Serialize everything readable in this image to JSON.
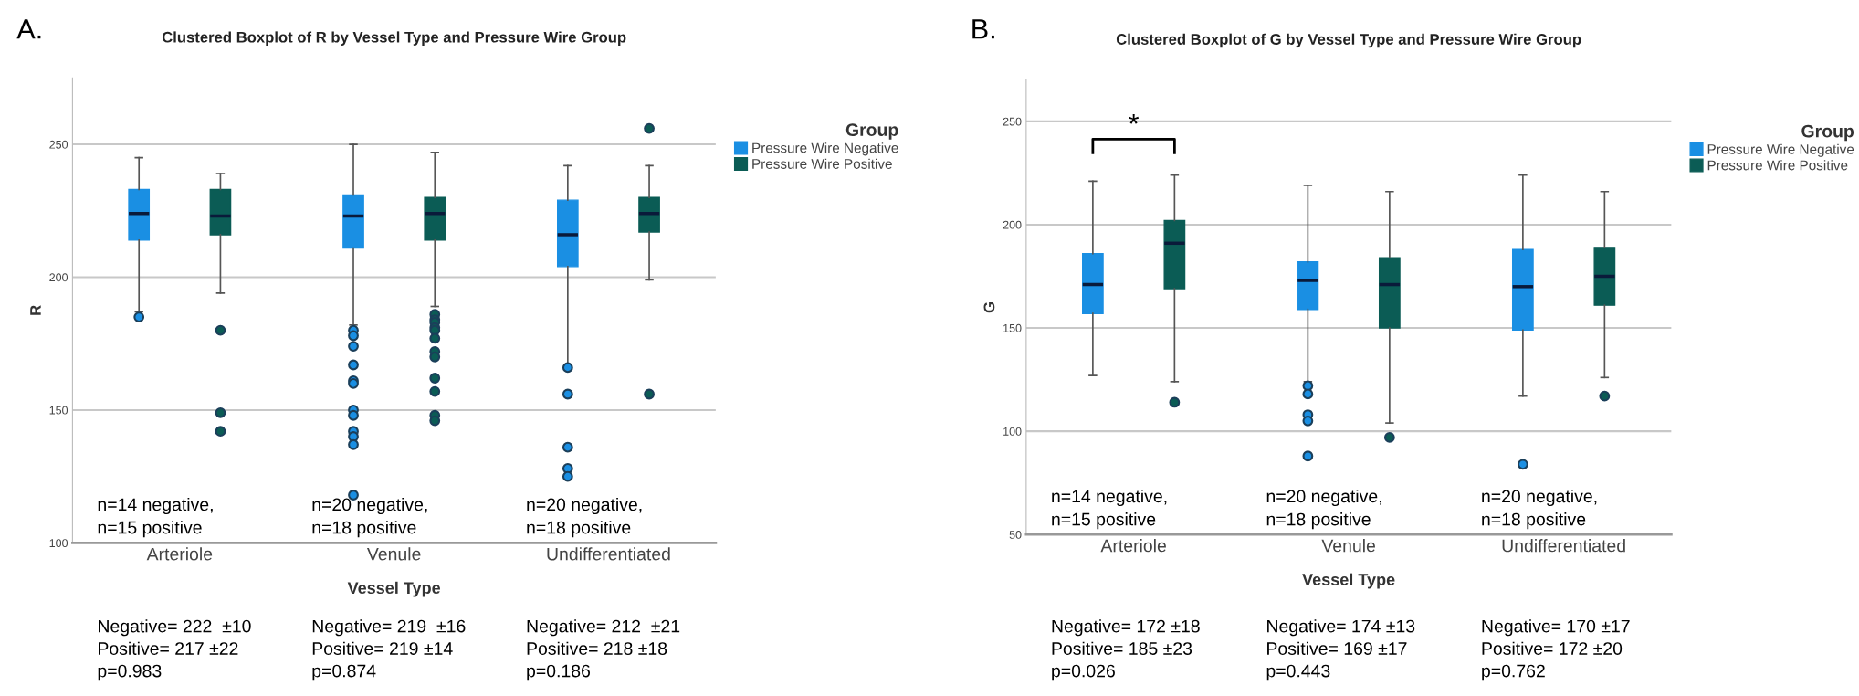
{
  "chart_data": [
    {
      "type": "box",
      "title": "Clustered Boxplot of R by Vessel Type and Pressure Wire Group",
      "xlabel": "Vessel Type",
      "ylabel": "R",
      "legend_title": "Group",
      "categories": [
        "Arteriole",
        "Venule",
        "Undifferentiated"
      ],
      "ylim": [
        100,
        275
      ],
      "yticks": [
        100,
        150,
        200,
        250
      ],
      "grid": "y",
      "legend": "right",
      "series": [
        {
          "name": "Pressure Wire Negative",
          "color": "#1a8fe3",
          "boxes": [
            {
              "low": 187,
              "q1": 214,
              "median": 224,
              "q3": 233,
              "high": 245,
              "outliers": [
                185
              ]
            },
            {
              "low": 182,
              "q1": 211,
              "median": 223,
              "q3": 231,
              "high": 250,
              "outliers": [
                180,
                178,
                174,
                167,
                161,
                160,
                150,
                148,
                142,
                140,
                137,
                118
              ]
            },
            {
              "low": 167,
              "q1": 204,
              "median": 216,
              "q3": 229,
              "high": 242,
              "outliers": [
                166,
                156,
                136,
                128,
                125
              ]
            }
          ]
        },
        {
          "name": "Pressure Wire Positive",
          "color": "#0b5c55",
          "boxes": [
            {
              "low": 194,
              "q1": 216,
              "median": 223,
              "q3": 233,
              "high": 239,
              "outliers": [
                180,
                149,
                142
              ]
            },
            {
              "low": 189,
              "q1": 214,
              "median": 224,
              "q3": 230,
              "high": 247,
              "outliers": [
                186,
                184,
                183,
                181,
                180,
                177,
                172,
                170,
                162,
                157,
                148,
                146
              ]
            },
            {
              "low": 199,
              "q1": 217,
              "median": 224,
              "q3": 230,
              "high": 242,
              "outliers": [
                256,
                156
              ]
            }
          ]
        }
      ],
      "annotations": [
        "A.",
        "n=14 negative,\nn=15 positive",
        "n=20 negative,\nn=18 positive",
        "n=20 negative,\nn=18 positive",
        "Negative= 222  ±10\nPositive= 217 ±22\np=0.983",
        "Negative= 219  ±16\nPositive= 219 ±14\np=0.874",
        "Negative= 212  ±21\nPositive= 218 ±18\np=0.186"
      ]
    },
    {
      "type": "box",
      "title": "Clustered Boxplot of G by Vessel Type and Pressure Wire Group",
      "xlabel": "Vessel Type",
      "ylabel": "G",
      "legend_title": "Group",
      "categories": [
        "Arteriole",
        "Venule",
        "Undifferentiated"
      ],
      "ylim": [
        50,
        270
      ],
      "yticks": [
        50,
        100,
        150,
        200,
        250
      ],
      "grid": "y",
      "legend": "right",
      "series": [
        {
          "name": "Pressure Wire Negative",
          "color": "#1a8fe3",
          "boxes": [
            {
              "low": 127,
              "q1": 157,
              "median": 171,
              "q3": 186,
              "high": 221
            },
            {
              "low": 124,
              "q1": 159,
              "median": 173,
              "q3": 182,
              "high": 219,
              "outliers": [
                122,
                118,
                108,
                105,
                88
              ]
            },
            {
              "low": 117,
              "q1": 149,
              "median": 170,
              "q3": 188,
              "high": 224,
              "outliers": [
                84
              ]
            }
          ]
        },
        {
          "name": "Pressure Wire Positive",
          "color": "#0b5c55",
          "boxes": [
            {
              "low": 124,
              "q1": 169,
              "median": 191,
              "q3": 202,
              "high": 224,
              "outliers": [
                114
              ]
            },
            {
              "low": 104,
              "q1": 150,
              "median": 171,
              "q3": 184,
              "high": 216,
              "outliers": [
                97
              ]
            },
            {
              "low": 126,
              "q1": 161,
              "median": 175,
              "q3": 189,
              "high": 216,
              "outliers": [
                117
              ]
            }
          ]
        }
      ],
      "annotations": [
        "B.",
        "n=14 negative,\nn=15 positive",
        "n=20 negative,\nn=18 positive",
        "n=20 negative,\nn=18 positive",
        "Negative= 172 ±18\nPositive= 185 ±23\np=0.026",
        "Negative= 174 ±13\nPositive= 169 ±17\np=0.443",
        "Negative= 170 ±17\nPositive= 172 ±20\np=0.762",
        "*"
      ]
    }
  ]
}
